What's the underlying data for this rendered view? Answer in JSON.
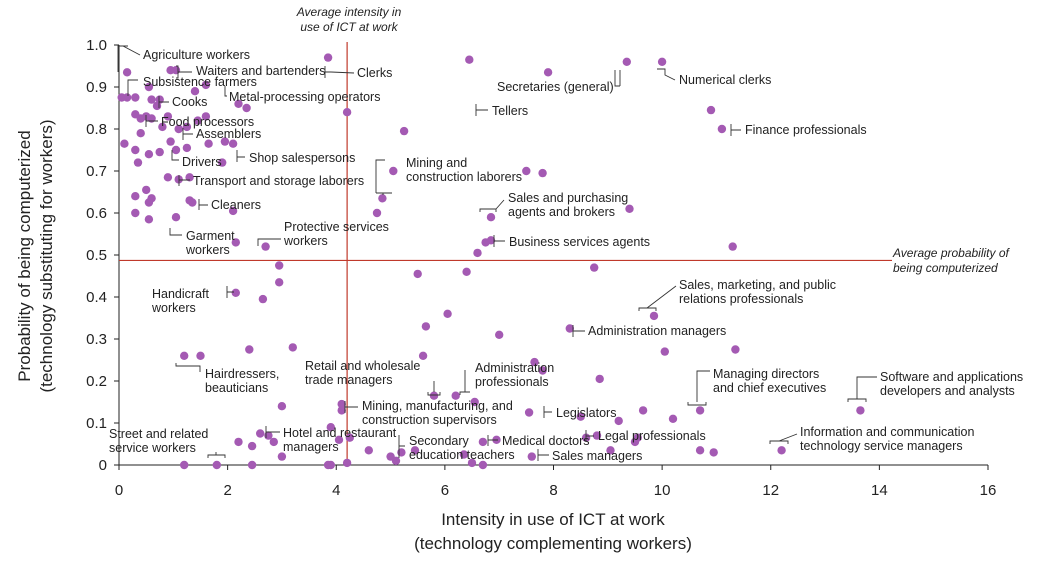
{
  "chart_data": {
    "type": "scatter",
    "xlabel": [
      "Intensity in use of ICT at work",
      "(technology complementing workers)"
    ],
    "ylabel": [
      "Probability of being computerized",
      "(technology substituting for workers)"
    ],
    "xlim": [
      0,
      16
    ],
    "ylim": [
      0,
      1.0
    ],
    "xticks": [
      "0",
      "2",
      "4",
      "6",
      "8",
      "10",
      "12",
      "14",
      "16"
    ],
    "yticks": [
      "0",
      "0.1",
      "0.2",
      "0.3",
      "0.4",
      "0.5",
      "0.6",
      "0.7",
      "0.8",
      "0.9",
      "1.0"
    ],
    "point_color": "#A45AB3",
    "reference_color": "#C0392B",
    "reference_lines": {
      "avg_ict": {
        "x": 4.2,
        "label": [
          "Average intensity in",
          "use of ICT at work"
        ]
      },
      "avg_prob": {
        "y": 0.487,
        "label": [
          "Average probability of",
          "being computerized"
        ]
      }
    },
    "points": [
      [
        0.15,
        0.935
      ],
      [
        0.05,
        0.875
      ],
      [
        0.15,
        0.875
      ],
      [
        0.3,
        0.875
      ],
      [
        0.55,
        0.9
      ],
      [
        0.6,
        0.87
      ],
      [
        0.7,
        0.855
      ],
      [
        0.75,
        0.87
      ],
      [
        0.95,
        0.94
      ],
      [
        1.05,
        0.94
      ],
      [
        1.4,
        0.89
      ],
      [
        0.3,
        0.835
      ],
      [
        0.4,
        0.825
      ],
      [
        0.5,
        0.83
      ],
      [
        0.6,
        0.825
      ],
      [
        0.8,
        0.805
      ],
      [
        0.9,
        0.83
      ],
      [
        1.1,
        0.8
      ],
      [
        1.25,
        0.805
      ],
      [
        1.45,
        0.82
      ],
      [
        0.4,
        0.79
      ],
      [
        0.1,
        0.765
      ],
      [
        0.3,
        0.75
      ],
      [
        0.55,
        0.74
      ],
      [
        0.75,
        0.745
      ],
      [
        0.95,
        0.77
      ],
      [
        1.05,
        0.75
      ],
      [
        1.25,
        0.755
      ],
      [
        1.65,
        0.765
      ],
      [
        1.95,
        0.77
      ],
      [
        2.1,
        0.765
      ],
      [
        1.6,
        0.83
      ],
      [
        0.35,
        0.72
      ],
      [
        0.9,
        0.685
      ],
      [
        1.1,
        0.68
      ],
      [
        1.3,
        0.685
      ],
      [
        1.9,
        0.72
      ],
      [
        2.2,
        0.86
      ],
      [
        2.35,
        0.85
      ],
      [
        1.6,
        0.905
      ],
      [
        0.3,
        0.64
      ],
      [
        0.5,
        0.655
      ],
      [
        0.55,
        0.625
      ],
      [
        0.6,
        0.635
      ],
      [
        0.3,
        0.6
      ],
      [
        0.55,
        0.585
      ],
      [
        1.05,
        0.59
      ],
      [
        1.3,
        0.63
      ],
      [
        1.35,
        0.625
      ],
      [
        2.1,
        0.605
      ],
      [
        2.15,
        0.53
      ],
      [
        2.7,
        0.52
      ],
      [
        2.15,
        0.41
      ],
      [
        2.65,
        0.395
      ],
      [
        2.95,
        0.435
      ],
      [
        2.95,
        0.475
      ],
      [
        2.4,
        0.275
      ],
      [
        3.2,
        0.28
      ],
      [
        1.2,
        0.26
      ],
      [
        1.5,
        0.26
      ],
      [
        3.0,
        0.14
      ],
      [
        2.2,
        0.055
      ],
      [
        2.45,
        0.045
      ],
      [
        2.6,
        0.075
      ],
      [
        2.75,
        0.07
      ],
      [
        2.85,
        0.055
      ],
      [
        3.0,
        0.02
      ],
      [
        1.2,
        0.0
      ],
      [
        1.8,
        0.0
      ],
      [
        2.45,
        0.0
      ],
      [
        3.85,
        0.0
      ],
      [
        3.85,
        0.97
      ],
      [
        4.2,
        0.84
      ],
      [
        4.1,
        0.145
      ],
      [
        4.1,
        0.13
      ],
      [
        3.9,
        0.09
      ],
      [
        4.05,
        0.06
      ],
      [
        4.25,
        0.065
      ],
      [
        4.2,
        0.005
      ],
      [
        3.9,
        0.0
      ],
      [
        4.6,
        0.035
      ],
      [
        4.75,
        0.6
      ],
      [
        5.05,
        0.7
      ],
      [
        5.25,
        0.795
      ],
      [
        4.85,
        0.635
      ],
      [
        5.0,
        0.02
      ],
      [
        5.1,
        0.01
      ],
      [
        5.2,
        0.03
      ],
      [
        5.45,
        0.035
      ],
      [
        5.5,
        0.455
      ],
      [
        5.6,
        0.26
      ],
      [
        5.65,
        0.33
      ],
      [
        5.8,
        0.165
      ],
      [
        6.05,
        0.36
      ],
      [
        6.2,
        0.165
      ],
      [
        6.35,
        0.025
      ],
      [
        6.45,
        0.965
      ],
      [
        6.4,
        0.46
      ],
      [
        6.55,
        0.15
      ],
      [
        6.6,
        0.505
      ],
      [
        6.75,
        0.53
      ],
      [
        6.85,
        0.535
      ],
      [
        6.85,
        0.59
      ],
      [
        6.7,
        0.055
      ],
      [
        6.95,
        0.06
      ],
      [
        6.5,
        0.005
      ],
      [
        6.7,
        0.0
      ],
      [
        7.0,
        0.31
      ],
      [
        7.5,
        0.7
      ],
      [
        7.65,
        0.245
      ],
      [
        7.55,
        0.125
      ],
      [
        7.6,
        0.02
      ],
      [
        7.8,
        0.695
      ],
      [
        7.8,
        0.225
      ],
      [
        7.9,
        0.935
      ],
      [
        8.3,
        0.325
      ],
      [
        8.5,
        0.115
      ],
      [
        8.6,
        0.065
      ],
      [
        8.75,
        0.47
      ],
      [
        8.8,
        0.07
      ],
      [
        8.85,
        0.205
      ],
      [
        9.05,
        0.035
      ],
      [
        9.2,
        0.105
      ],
      [
        9.35,
        0.96
      ],
      [
        9.4,
        0.61
      ],
      [
        9.5,
        0.055
      ],
      [
        9.55,
        0.065
      ],
      [
        9.65,
        0.13
      ],
      [
        9.85,
        0.355
      ],
      [
        10.0,
        0.96
      ],
      [
        10.05,
        0.27
      ],
      [
        10.2,
        0.11
      ],
      [
        10.7,
        0.13
      ],
      [
        10.7,
        0.035
      ],
      [
        10.95,
        0.03
      ],
      [
        10.9,
        0.845
      ],
      [
        11.1,
        0.8
      ],
      [
        11.3,
        0.52
      ],
      [
        11.35,
        0.275
      ],
      [
        12.2,
        0.035
      ],
      [
        13.65,
        0.13
      ]
    ],
    "annotations": [
      {
        "lines": [
          "Agriculture workers"
        ]
      },
      {
        "lines": [
          "Waiters and bartenders"
        ]
      },
      {
        "lines": [
          "Subsistence farmers"
        ]
      },
      {
        "lines": [
          "Clerks"
        ]
      },
      {
        "lines": [
          "Metal-processing operators"
        ]
      },
      {
        "lines": [
          "Cooks"
        ]
      },
      {
        "lines": [
          "Food processors"
        ]
      },
      {
        "lines": [
          "Assemblers"
        ]
      },
      {
        "lines": [
          "Shop salespersons"
        ]
      },
      {
        "lines": [
          "Drivers"
        ]
      },
      {
        "lines": [
          "Transport and storage laborers"
        ]
      },
      {
        "lines": [
          "Cleaners"
        ]
      },
      {
        "lines": [
          "Garment",
          "workers"
        ]
      },
      {
        "lines": [
          "Protective services",
          "workers"
        ]
      },
      {
        "lines": [
          "Mining and",
          "construction laborers"
        ]
      },
      {
        "lines": [
          "Secretaries (general)"
        ]
      },
      {
        "lines": [
          "Numerical clerks"
        ]
      },
      {
        "lines": [
          "Tellers"
        ]
      },
      {
        "lines": [
          "Finance professionals"
        ]
      },
      {
        "lines": [
          "Sales and purchasing",
          "agents and brokers"
        ]
      },
      {
        "lines": [
          "Business services agents"
        ]
      },
      {
        "lines": [
          "Handicraft",
          "workers"
        ]
      },
      {
        "lines": [
          "Sales, marketing, and public",
          "relations professionals"
        ]
      },
      {
        "lines": [
          "Administration managers"
        ]
      },
      {
        "lines": [
          "Hairdressers,",
          "beauticians"
        ]
      },
      {
        "lines": [
          "Retail and wholesale",
          "trade managers"
        ]
      },
      {
        "lines": [
          "Administration",
          "professionals"
        ]
      },
      {
        "lines": [
          "Managing directors",
          "and chief executives"
        ]
      },
      {
        "lines": [
          "Software and applications",
          "developers and analysts"
        ]
      },
      {
        "lines": [
          "Mining, manufacturing, and",
          "construction supervisors"
        ]
      },
      {
        "lines": [
          "Legislators"
        ]
      },
      {
        "lines": [
          "Street and related",
          "service workers"
        ]
      },
      {
        "lines": [
          "Hotel and restaurant",
          "managers"
        ]
      },
      {
        "lines": [
          "Secondary",
          "education teachers"
        ]
      },
      {
        "lines": [
          "Medical doctors"
        ]
      },
      {
        "lines": [
          "Legal professionals"
        ]
      },
      {
        "lines": [
          "Sales managers"
        ]
      },
      {
        "lines": [
          "Information and communication",
          "technology service managers"
        ]
      }
    ]
  }
}
